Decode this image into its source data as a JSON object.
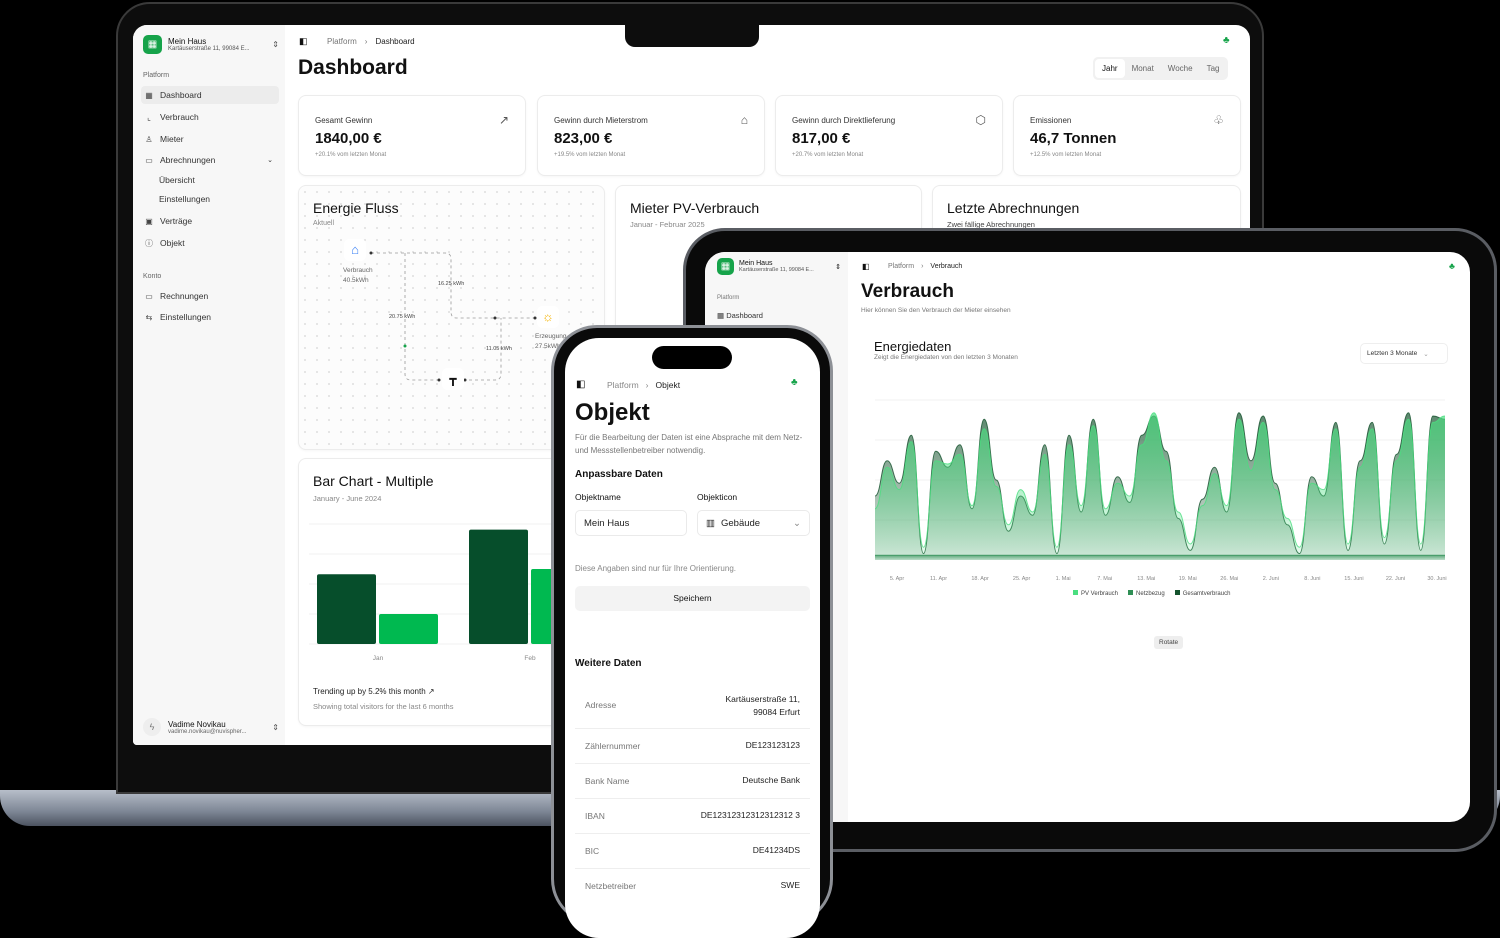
{
  "accent": "#16a34a",
  "laptop": {
    "sidebar": {
      "org_name": "Mein Haus",
      "org_address": "Kartäuserstraße 11, 99084 E...",
      "section_platform": "Platform",
      "items": [
        {
          "label": "Dashboard",
          "icon": "layout-grid-icon"
        },
        {
          "label": "Verbrauch",
          "icon": "chart-line-icon"
        },
        {
          "label": "Mieter",
          "icon": "user-icon"
        },
        {
          "label": "Abrechnungen",
          "icon": "credit-card-icon"
        },
        {
          "label": "Übersicht"
        },
        {
          "label": "Einstellungen"
        },
        {
          "label": "Verträge",
          "icon": "contract-icon"
        },
        {
          "label": "Objekt",
          "icon": "info-icon"
        }
      ],
      "section_konto": "Konto",
      "konto_items": [
        {
          "label": "Rechnungen",
          "icon": "credit-card-icon"
        },
        {
          "label": "Einstellungen",
          "icon": "sliders-icon"
        }
      ],
      "user_name": "Vadime Novikau",
      "user_email": "vadime.novikau@nuvispher..."
    },
    "breadcrumb": {
      "root": "Platform",
      "current": "Dashboard"
    },
    "title": "Dashboard",
    "period_tabs": [
      "Jahr",
      "Monat",
      "Woche",
      "Tag"
    ],
    "period_selected": "Jahr",
    "kpis": [
      {
        "label": "Gesamt Gewinn",
        "value": "1840,00 €",
        "change": "+20.1% vom letzten Monat",
        "icon": "trending-up-icon"
      },
      {
        "label": "Gewinn durch Mieterstrom",
        "value": "823,00 €",
        "change": "+19.5% vom letzten Monat",
        "icon": "house-icon"
      },
      {
        "label": "Gewinn durch Direktlieferung",
        "value": "817,00 €",
        "change": "+20.7% vom letzten Monat",
        "icon": "package-icon"
      },
      {
        "label": "Emissionen",
        "value": "46,7 Tonnen",
        "change": "+12.5% vom letzten Monat",
        "icon": "trees-icon"
      }
    ],
    "energy_flow": {
      "title": "Energie Fluss",
      "subtitle": "Aktuell",
      "consumption_label": "Verbrauch",
      "consumption_value": "40.5kWh",
      "production_label": "Erzeugung",
      "production_value": "27.5kWh",
      "flow_1": "16.25 kWh",
      "flow_2": "20.75 kWh",
      "flow_3": "11.05 kWh"
    },
    "pv_card": {
      "title": "Mieter PV-Verbrauch",
      "subtitle": "Januar - Februar 2025"
    },
    "bills_card": {
      "title": "Letzte Abrechnungen",
      "subtitle": "Zwei fällige Abrechnungen"
    },
    "bar_card": {
      "title": "Bar Chart - Multiple",
      "subtitle": "January - June 2024",
      "trend": "Trending up by 5.2% this month",
      "footnote": "Showing total visitors for the last 6 months"
    }
  },
  "tablet": {
    "org_name": "Mein Haus",
    "org_address": "Kartäuserstraße 11, 99084 E...",
    "section_platform": "Platform",
    "nav_dashboard": "Dashboard",
    "breadcrumb": {
      "root": "Platform",
      "current": "Verbrauch"
    },
    "title": "Verbrauch",
    "subtitle": "Hier können Sie den Verbrauch der Mieter einsehen",
    "card_title": "Energiedaten",
    "card_subtitle": "Zeigt die Energiedaten von den letzten 3 Monaten",
    "range_select": "Letzten 3 Monate",
    "rotate_button": "Rotate"
  },
  "phone": {
    "breadcrumb": {
      "root": "Platform",
      "current": "Objekt"
    },
    "title": "Objekt",
    "description": "Für die Bearbeitung der Daten ist eine Absprache mit dem Netz- und Messstellenbetreiber notwendig.",
    "section_editable": "Anpassbare Daten",
    "name_label": "Objektname",
    "name_value": "Mein Haus",
    "icon_label": "Objekticon",
    "icon_value": "Gebäude",
    "note": "Diese Angaben sind nur für Ihre Orientierung.",
    "save_button": "Speichern",
    "section_more": "Weitere Daten",
    "rows": [
      {
        "key": "Adresse",
        "value": "Kartäuserstraße 11,\n99084 Erfurt"
      },
      {
        "key": "Zählernummer",
        "value": "DE123123123"
      },
      {
        "key": "Bank Name",
        "value": "Deutsche Bank"
      },
      {
        "key": "IBAN",
        "value": "DE12312312312312312 3"
      },
      {
        "key": "BIC",
        "value": "DE41234DS"
      },
      {
        "key": "Netzbetreiber",
        "value": "SWE"
      }
    ]
  },
  "chart_data": [
    {
      "type": "bar",
      "title": "Bar Chart - Multiple",
      "categories": [
        "Jan",
        "Feb"
      ],
      "series": [
        {
          "values": [
            186,
            305
          ],
          "color": "#064e2b"
        },
        {
          "values": [
            80,
            200
          ],
          "color": "#00b950"
        }
      ],
      "ylim": [
        0,
        320
      ],
      "grid": true
    },
    {
      "type": "area",
      "title": "Energiedaten",
      "x_ticks": [
        "5. Apr",
        "11. Apr",
        "18. Apr",
        "25. Apr",
        "1. Mai",
        "7. Mai",
        "13. Mai",
        "19. Mai",
        "26. Mai",
        "2. Juni",
        "8. Juni",
        "15. Juni",
        "22. Juni",
        "30. Juni"
      ],
      "series": [
        {
          "name": "PV Verbrauch",
          "color": "#4ade80",
          "values": [
            32,
            58,
            44,
            74,
            8,
            62,
            60,
            66,
            34,
            82,
            46,
            22,
            44,
            30,
            66,
            8,
            72,
            34,
            84,
            32,
            48,
            40,
            72,
            92,
            62,
            30,
            10,
            34,
            54,
            34,
            88,
            56,
            86,
            44,
            26,
            8,
            48,
            44,
            82,
            10,
            58,
            82,
            14,
            62,
            88,
            10,
            86,
            90
          ]
        },
        {
          "name": "Netzbezug",
          "color": "#2f8f55",
          "values": [
            3,
            3,
            3,
            3,
            3,
            3,
            3,
            3,
            3,
            3,
            3,
            3,
            3,
            3,
            3,
            3,
            3,
            3,
            3,
            3,
            3,
            3,
            3,
            3,
            3,
            3,
            3,
            3,
            3,
            3,
            3,
            3,
            3,
            3,
            3,
            3,
            3,
            3,
            3,
            3,
            3,
            3,
            3,
            3,
            3,
            3,
            3,
            3
          ]
        },
        {
          "name": "Gesamtverbrauch",
          "color": "#14532d",
          "values": [
            40,
            62,
            48,
            78,
            4,
            68,
            58,
            72,
            32,
            88,
            50,
            18,
            40,
            28,
            72,
            4,
            78,
            30,
            88,
            28,
            52,
            36,
            78,
            90,
            68,
            26,
            6,
            38,
            58,
            30,
            92,
            62,
            90,
            48,
            22,
            4,
            52,
            40,
            86,
            6,
            62,
            86,
            10,
            66,
            92,
            6,
            90,
            88
          ]
        }
      ],
      "legend": "bottom",
      "grid": true
    }
  ]
}
